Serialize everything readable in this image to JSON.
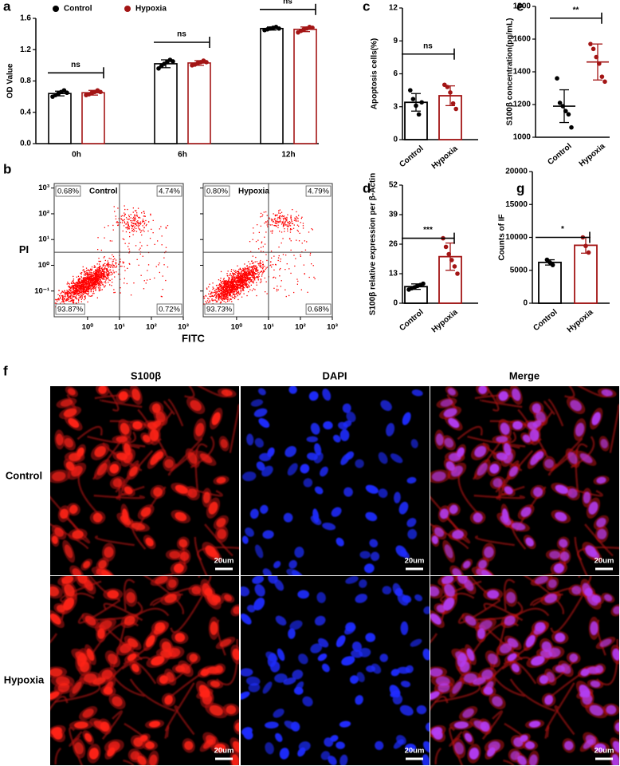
{
  "chart_data": [
    {
      "panel": "a",
      "type": "bar",
      "ylabel": "OD Value",
      "categories": [
        "0h",
        "6h",
        "12h"
      ],
      "series": [
        {
          "name": "Control",
          "color": "#000000",
          "values": [
            0.64,
            1.02,
            1.47
          ],
          "errors": [
            0.03,
            0.05,
            0.02
          ],
          "points": [
            [
              0.6,
              0.62,
              0.64,
              0.66,
              0.68,
              0.65
            ],
            [
              0.96,
              0.99,
              1.02,
              1.04,
              1.07,
              1.05
            ],
            [
              1.45,
              1.46,
              1.47,
              1.48,
              1.49,
              1.47
            ]
          ]
        },
        {
          "name": "Hypoxia",
          "color": "#a31515",
          "values": [
            0.65,
            1.03,
            1.46
          ],
          "errors": [
            0.03,
            0.03,
            0.03
          ],
          "points": [
            [
              0.62,
              0.63,
              0.65,
              0.66,
              0.68,
              0.66
            ],
            [
              1.0,
              1.01,
              1.03,
              1.04,
              1.06,
              1.04
            ],
            [
              1.42,
              1.44,
              1.46,
              1.47,
              1.49,
              1.48
            ]
          ]
        }
      ],
      "ylim": [
        0,
        1.6
      ],
      "yticks": [
        {
          "value": 0,
          "label": "0.0"
        },
        0.4,
        0.8,
        1.2,
        1.6
      ],
      "annotations": [
        "ns",
        "ns",
        "ns"
      ]
    },
    {
      "panel": "b",
      "type": "flow",
      "xlabel": "FITC",
      "ylabel": "PI",
      "xlog": true,
      "ylog": true,
      "color": "#ff0000",
      "xlim": [
        0.09,
        1000
      ],
      "ylim": [
        0.01,
        1500
      ],
      "xticks": [
        {
          "value": 1,
          "label": "10⁰"
        },
        {
          "value": 10,
          "label": "10¹"
        },
        {
          "value": 100,
          "label": "10²"
        },
        {
          "value": 1000,
          "label": "10³"
        }
      ],
      "yticks": [
        {
          "value": 0.1,
          "label": "10⁻¹"
        },
        {
          "value": 1,
          "label": "10⁰"
        },
        {
          "value": 10,
          "label": "10¹"
        },
        {
          "value": 100,
          "label": "10²"
        },
        {
          "value": 1000,
          "label": "10³"
        }
      ],
      "gate": {
        "x": 10,
        "y": 3.2
      },
      "samples": [
        {
          "name": "Control",
          "values": [
            0.68,
            4.74,
            93.87,
            0.72
          ],
          "value_labels": [
            "0.68%",
            "4.74%",
            "93.87%",
            "0.72%"
          ]
        },
        {
          "name": "Hypoxia",
          "values": [
            0.8,
            4.79,
            93.73,
            0.68
          ],
          "value_labels": [
            "0.80%",
            "4.79%",
            "93.73%",
            "0.68%"
          ]
        }
      ]
    },
    {
      "panel": "c",
      "type": "bar",
      "ylabel": "Apoptosis cells(%)",
      "categories": [
        "Control",
        "Hypoxia"
      ],
      "colors": [
        "#000000",
        "#a31515"
      ],
      "values": [
        3.4,
        4.0
      ],
      "errors": [
        0.8,
        0.9
      ],
      "points": [
        [
          4.5,
          3.7,
          3.1,
          2.3,
          3.4
        ],
        [
          5.0,
          4.8,
          4.3,
          3.3,
          2.8
        ]
      ],
      "ylim": [
        0,
        12
      ],
      "yticks": [
        0,
        3,
        6,
        9,
        12
      ],
      "annotation": "ns"
    },
    {
      "panel": "d",
      "type": "bar",
      "ylabel": "S100β relative expression per β-Actin",
      "categories": [
        "Control",
        "Hypoxia"
      ],
      "colors": [
        "#000000",
        "#a31515"
      ],
      "values": [
        7.3,
        20.5
      ],
      "errors": [
        1.2,
        6.0
      ],
      "points": [
        [
          6.0,
          6.6,
          7.0,
          7.6,
          8.0,
          8.6
        ],
        [
          28.6,
          24.8,
          21.6,
          19.0,
          16.2,
          13.0
        ]
      ],
      "ylim": [
        0,
        52
      ],
      "yticks": [
        0,
        13,
        26,
        39,
        52
      ],
      "annotation": "***"
    },
    {
      "panel": "e",
      "type": "dot",
      "ylabel": "S100β concentration(pg/mL)",
      "categories": [
        "Control",
        "Hypoxia"
      ],
      "colors": [
        "#000000",
        "#a31515"
      ],
      "values": [
        1190,
        1460
      ],
      "errors": [
        100,
        110
      ],
      "points": [
        [
          1360,
          1210,
          1190,
          1160,
          1140,
          1060
        ],
        [
          1570,
          1540,
          1490,
          1450,
          1370,
          1340
        ]
      ],
      "ylim": [
        1000,
        1800
      ],
      "yticks": [
        1000,
        1200,
        1400,
        1600,
        1800
      ],
      "annotation": "**"
    },
    {
      "panel": "g",
      "type": "bar",
      "ylabel": "Counts of IF",
      "categories": [
        "Control",
        "Hypoxia"
      ],
      "colors": [
        "#000000",
        "#a31515"
      ],
      "values": [
        6200,
        8800
      ],
      "errors": [
        400,
        1200
      ],
      "points": [
        [
          6600,
          6200,
          5800
        ],
        [
          10000,
          8700,
          7700
        ]
      ],
      "ylim": [
        0,
        20000
      ],
      "yticks": [
        0,
        5000,
        10000,
        15000,
        20000
      ],
      "annotation": "*"
    }
  ],
  "image_panel": {
    "panel": "f",
    "columns": [
      "S100β",
      "DAPI",
      "Merge"
    ],
    "rows": [
      "Control",
      "Hypoxia"
    ],
    "scale_bar": "20um"
  }
}
